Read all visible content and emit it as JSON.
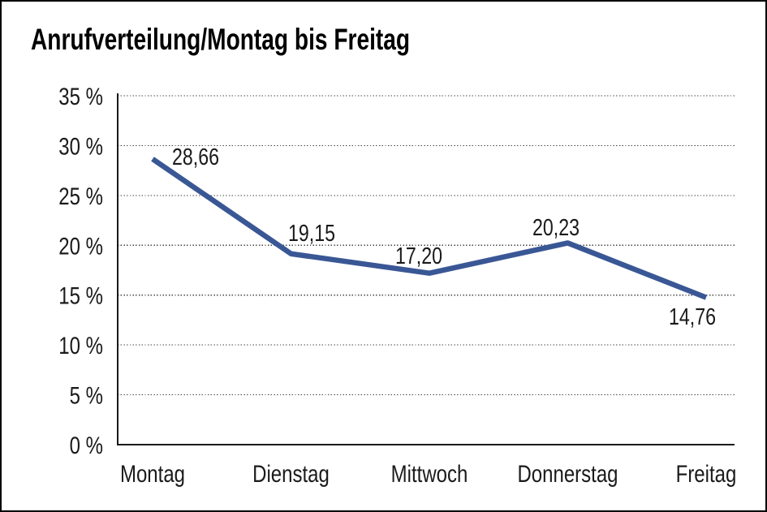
{
  "chart_data": {
    "type": "line",
    "title": "Anrufverteilung/Montag bis Freitag",
    "categories": [
      "Montag",
      "Dienstag",
      "Mittwoch",
      "Donnerstag",
      "Freitag"
    ],
    "values": [
      28.66,
      19.15,
      17.2,
      20.23,
      14.76
    ],
    "data_labels": [
      "28,66",
      "19,15",
      "17,20",
      "20,23",
      "14,76"
    ],
    "y_ticks": [
      {
        "value": 0,
        "label": "0 %"
      },
      {
        "value": 5,
        "label": "5 %"
      },
      {
        "value": 10,
        "label": "10 %"
      },
      {
        "value": 15,
        "label": "15 %"
      },
      {
        "value": 20,
        "label": "20 %"
      },
      {
        "value": 25,
        "label": "25 %"
      },
      {
        "value": 30,
        "label": "30 %"
      },
      {
        "value": 35,
        "label": "35 %"
      }
    ],
    "ylim": [
      0,
      35
    ],
    "xlabel": "",
    "ylabel": "",
    "legend": "none",
    "grid": "dotted-horizontal",
    "line_color": "#3A5795",
    "gridline_color": "#444444",
    "axis_color": "#1a1a1a",
    "text_color": "#1a1a1a",
    "background_color": "#ffffff"
  }
}
